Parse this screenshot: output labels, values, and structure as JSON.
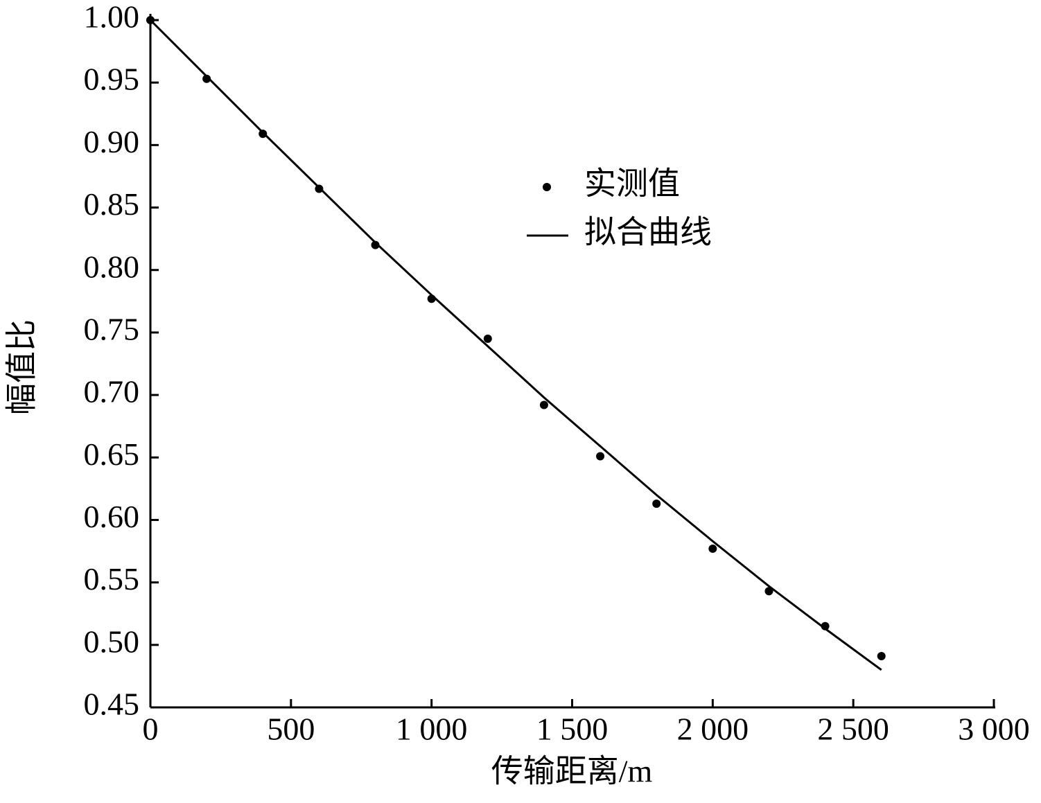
{
  "chart_data": {
    "type": "scatter",
    "x_label": "传输距离/m",
    "y_label": "幅值比",
    "x": [
      0,
      200,
      400,
      600,
      800,
      1000,
      1200,
      1400,
      1600,
      1800,
      2000,
      2200,
      2400,
      2600
    ],
    "series": [
      {
        "name": "实测值",
        "color": "#000000",
        "mode": "markers",
        "values": [
          1.0,
          0.953,
          0.909,
          0.865,
          0.82,
          0.777,
          0.745,
          0.692,
          0.651,
          0.613,
          0.577,
          0.543,
          0.515,
          0.491
        ]
      },
      {
        "name": "拟合曲线",
        "color": "#000000",
        "mode": "line",
        "values": [
          1.0,
          0.955,
          0.91,
          0.866,
          0.822,
          0.78,
          0.739,
          0.698,
          0.659,
          0.62,
          0.583,
          0.547,
          0.513,
          0.48
        ]
      }
    ],
    "xlim": [
      0,
      3000
    ],
    "xticks": [
      0,
      500,
      {
        "value": 1000,
        "label": "1 000"
      },
      {
        "value": 1500,
        "label": "1 500"
      },
      {
        "value": 2000,
        "label": "2 000"
      },
      {
        "value": 2500,
        "label": "2 500"
      },
      {
        "value": 3000,
        "label": "3 000"
      }
    ],
    "ylim": [
      0.45,
      1.0
    ],
    "yticks": [
      0.45,
      {
        "value": 0.5,
        "label": "0.50"
      },
      0.55,
      {
        "value": 0.6,
        "label": "0.60"
      },
      0.65,
      {
        "value": 0.7,
        "label": "0.70"
      },
      0.75,
      {
        "value": 0.8,
        "label": "0.80"
      },
      0.85,
      {
        "value": 0.9,
        "label": "0.90"
      },
      0.95,
      {
        "value": 1.0,
        "label": "1.00"
      }
    ],
    "grid": false
  }
}
